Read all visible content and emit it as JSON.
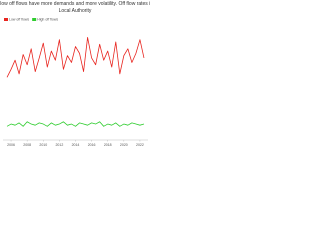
{
  "chart_data": {
    "type": "line",
    "title": "Places with low off flows have more demands and more volatility. Off flow rates in the UK by Local Authority",
    "legend": "top-left",
    "x": [
      2005.5,
      2006,
      2006.5,
      2007,
      2007.5,
      2008,
      2008.5,
      2009,
      2009.5,
      2010,
      2010.5,
      2011,
      2011.5,
      2012,
      2012.5,
      2013,
      2013.5,
      2014,
      2014.5,
      2015,
      2015.5,
      2016,
      2016.5,
      2017,
      2017.5,
      2018,
      2018.5,
      2019,
      2019.5,
      2020,
      2020.5,
      2021,
      2021.5,
      2022,
      2022.5
    ],
    "xlim": [
      2005,
      2023
    ],
    "xticks": [
      2006,
      2008,
      2010,
      2012,
      2014,
      2016,
      2018,
      2020,
      2022
    ],
    "ylim": [
      0,
      100
    ],
    "series": [
      {
        "name": "Low off flows",
        "color": "#e8251f",
        "values": [
          55,
          62,
          70,
          58,
          75,
          66,
          80,
          60,
          72,
          85,
          64,
          78,
          70,
          88,
          62,
          74,
          68,
          82,
          76,
          60,
          90,
          72,
          66,
          84,
          70,
          78,
          64,
          86,
          58,
          74,
          80,
          68,
          76,
          88,
          72
        ]
      },
      {
        "name": "High off flows",
        "color": "#2ecc2e",
        "values": [
          12,
          14,
          13,
          15,
          12,
          16,
          14,
          13,
          15,
          14,
          12,
          15,
          13,
          14,
          16,
          13,
          14,
          12,
          15,
          14,
          13,
          15,
          14,
          16,
          12,
          14,
          13,
          15,
          12,
          14,
          13,
          15,
          14,
          13,
          14
        ]
      }
    ]
  }
}
